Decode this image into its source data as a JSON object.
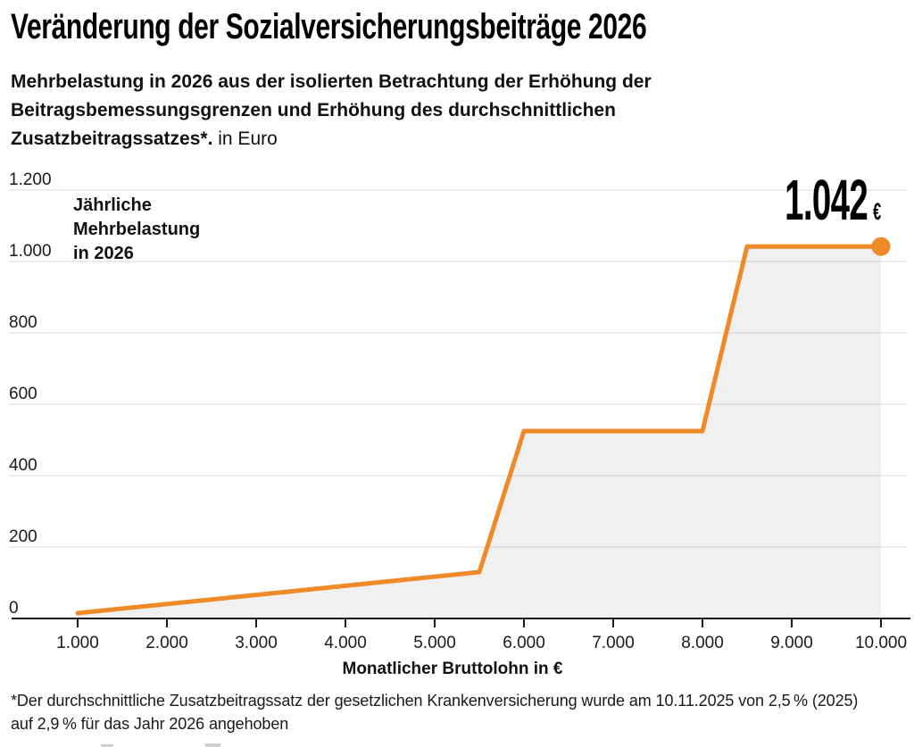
{
  "header": {
    "title": "Veränderung der Sozialversicherungsbeiträge 2026",
    "subtitle_bold": "Mehrbelastung in 2026 aus der isolierten Betrachtung der Erhöhung der\nBeitragsbemessungsgrenzen und Erhöhung des durchschnittlichen\nZusatzbeitragssatzes*.",
    "subtitle_regular": " in Euro"
  },
  "chart_data": {
    "type": "line",
    "area": true,
    "title": "Veränderung der Sozialversicherungsbeiträge 2026",
    "series": [
      {
        "name": "Jährliche Mehrbelastung in 2026",
        "x": [
          1000,
          5500,
          6000,
          8000,
          8500,
          10000
        ],
        "y": [
          15,
          130,
          525,
          525,
          1042,
          1042
        ]
      }
    ],
    "annotation": "Jährliche\nMehrbelastung\nin 2026",
    "end_label": {
      "value": "1.042",
      "currency": "€"
    },
    "xlabel": "Monatlicher Bruttolohn in €",
    "ylabel": "",
    "xlim": [
      1000,
      10000
    ],
    "ylim": [
      0,
      1200
    ],
    "grid": "horizontal",
    "legend": "none",
    "x_ticks": [
      {
        "value": 1000,
        "label": "1.000"
      },
      {
        "value": 2000,
        "label": "2.000"
      },
      {
        "value": 3000,
        "label": "3.000"
      },
      {
        "value": 4000,
        "label": "4.000"
      },
      {
        "value": 5000,
        "label": "5.000"
      },
      {
        "value": 6000,
        "label": "6.000"
      },
      {
        "value": 7000,
        "label": "7.000"
      },
      {
        "value": 8000,
        "label": "8.000"
      },
      {
        "value": 9000,
        "label": "9.000"
      },
      {
        "value": 10000,
        "label": "10.000"
      }
    ],
    "y_ticks": [
      {
        "value": 0,
        "label": "0"
      },
      {
        "value": 200,
        "label": "200"
      },
      {
        "value": 400,
        "label": "400"
      },
      {
        "value": 600,
        "label": "600"
      },
      {
        "value": 800,
        "label": "800"
      },
      {
        "value": 1000,
        "label": "1.000"
      },
      {
        "value": 1200,
        "label": "1.200"
      }
    ],
    "colors": {
      "line": "#EF8A28",
      "dot": "#EF8A28",
      "fill": "rgba(0,0,0,0.06)",
      "gridline": "#e9e6e2",
      "axis": "#1a1a1a"
    }
  },
  "footnote": "*Der durchschnittliche Zusatzbeitragssatz der gesetzlichen Krankenversicherung wurde am 10.11.2025 von 2,5 % (2025)\nauf 2,9 % für das Jahr 2026 angehoben"
}
